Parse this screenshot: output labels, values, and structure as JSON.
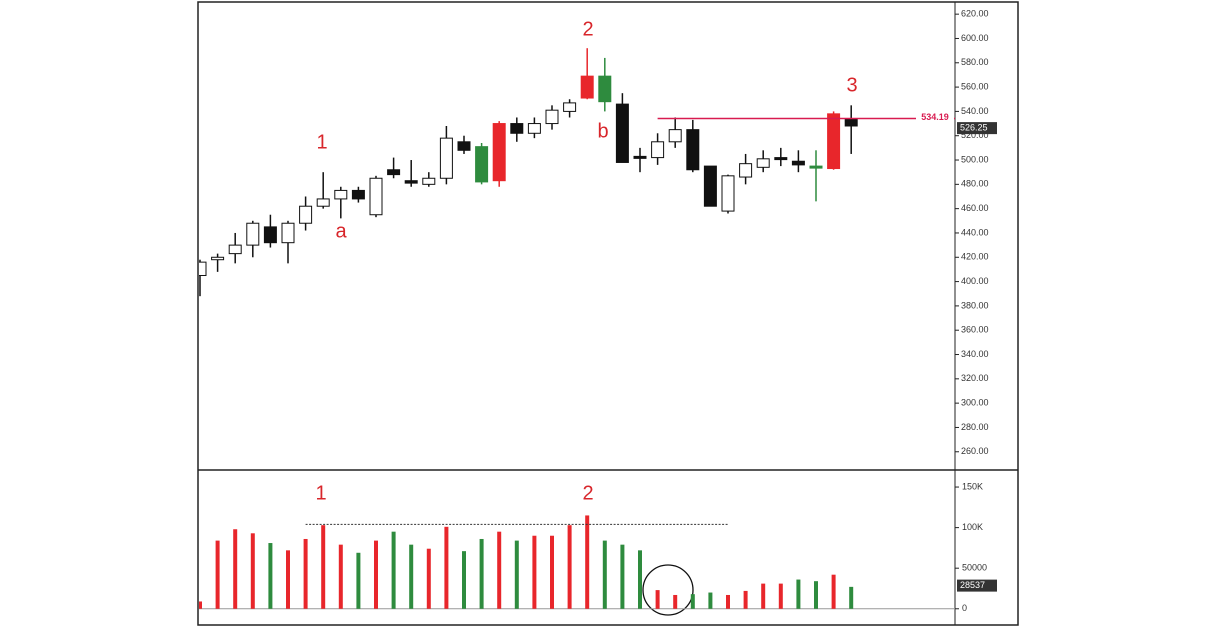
{
  "chart_data": [
    {
      "type": "candlestick",
      "open": [
        405,
        418,
        423,
        430,
        445,
        432,
        448,
        462,
        468,
        475,
        455,
        492,
        483,
        480,
        485,
        515,
        511,
        483,
        530,
        522,
        530,
        540,
        551,
        569,
        546,
        503,
        502,
        515,
        525,
        495,
        458,
        486,
        494,
        502,
        499,
        495,
        493,
        534
      ],
      "high": [
        418,
        423,
        440,
        450,
        455,
        450,
        470,
        490,
        478,
        478,
        487,
        502,
        500,
        490,
        528,
        520,
        514,
        532,
        535,
        535,
        545,
        550,
        592,
        584,
        555,
        510,
        522,
        535,
        533,
        495,
        488,
        505,
        508,
        510,
        508,
        508,
        540,
        545
      ],
      "low": [
        388,
        408,
        415,
        420,
        428,
        415,
        442,
        460,
        452,
        465,
        453,
        485,
        478,
        478,
        480,
        505,
        480,
        478,
        515,
        518,
        525,
        535,
        550,
        540,
        498,
        490,
        496,
        510,
        490,
        462,
        456,
        480,
        490,
        495,
        490,
        466,
        492,
        505
      ],
      "close": [
        416,
        420,
        430,
        448,
        432,
        448,
        462,
        468,
        475,
        468,
        485,
        488,
        481,
        485,
        518,
        508,
        482,
        530,
        522,
        530,
        541,
        547,
        569,
        548,
        498,
        502,
        515,
        525,
        492,
        462,
        487,
        497,
        501,
        501,
        496,
        494,
        538,
        528
      ],
      "colors": [
        "white",
        "white",
        "white",
        "white",
        "black",
        "white",
        "white",
        "white",
        "white",
        "black",
        "white",
        "black",
        "black",
        "white",
        "white",
        "black",
        "#2e8b3e",
        "#e8262b",
        "black",
        "white",
        "white",
        "white",
        "#e8262b",
        "#2e8b3e",
        "black",
        "black",
        "white",
        "white",
        "black",
        "black",
        "white",
        "white",
        "white",
        "black",
        "black",
        "#2e8b3e",
        "#e8262b",
        "black"
      ],
      "ylim": [
        245,
        630
      ],
      "yticks": [
        {
          "value": 260,
          "label": "260.00"
        },
        {
          "value": 280,
          "label": "280.00"
        },
        {
          "value": 300,
          "label": "300.00"
        },
        {
          "value": 320,
          "label": "320.00"
        },
        {
          "value": 340,
          "label": "340.00"
        },
        {
          "value": 360,
          "label": "360.00"
        },
        {
          "value": 380,
          "label": "380.00"
        },
        {
          "value": 400,
          "label": "400.00"
        },
        {
          "value": 420,
          "label": "420.00"
        },
        {
          "value": 440,
          "label": "440.00"
        },
        {
          "value": 460,
          "label": "460.00"
        },
        {
          "value": 480,
          "label": "480.00"
        },
        {
          "value": 500,
          "label": "500.00"
        },
        {
          "value": 520,
          "label": "520.00"
        },
        {
          "value": 540,
          "label": "540.00"
        },
        {
          "value": 560,
          "label": "560.00"
        },
        {
          "value": 580,
          "label": "580.00"
        },
        {
          "value": 600,
          "label": "600.00"
        },
        {
          "value": 620,
          "label": "620.00"
        }
      ],
      "reference_line": 534.19,
      "reference_color": "#d81b50",
      "last_price": 526.25,
      "annotations": [
        "1",
        "a",
        "2",
        "b",
        "3"
      ]
    },
    {
      "type": "bar",
      "values": [
        9000,
        84000,
        98000,
        93000,
        81000,
        72000,
        86000,
        103000,
        79000,
        69000,
        84000,
        95000,
        79000,
        74000,
        101000,
        71000,
        86000,
        95000,
        84000,
        90000,
        90000,
        103000,
        115000,
        84000,
        79000,
        72000,
        23000,
        17000,
        18000,
        20000,
        17000,
        22000,
        31000,
        31000,
        36000,
        34000,
        42000,
        27000
      ],
      "colors": [
        "#e8262b",
        "#e8262b",
        "#e8262b",
        "#e8262b",
        "#2e8b3e",
        "#e8262b",
        "#e8262b",
        "#e8262b",
        "#e8262b",
        "#2e8b3e",
        "#e8262b",
        "#2e8b3e",
        "#2e8b3e",
        "#e8262b",
        "#e8262b",
        "#2e8b3e",
        "#2e8b3e",
        "#e8262b",
        "#2e8b3e",
        "#e8262b",
        "#e8262b",
        "#e8262b",
        "#e8262b",
        "#2e8b3e",
        "#2e8b3e",
        "#2e8b3e",
        "#e8262b",
        "#e8262b",
        "#2e8b3e",
        "#2e8b3e",
        "#e8262b",
        "#e8262b",
        "#e8262b",
        "#e8262b",
        "#2e8b3e",
        "#2e8b3e",
        "#e8262b",
        "#2e8b3e"
      ],
      "ylim": [
        -20000,
        171000
      ],
      "yticks": [
        0,
        50000,
        {
          "value": 100000,
          "label": "100K"
        },
        {
          "value": 150000,
          "label": "150K"
        }
      ],
      "reference_line": 104000,
      "last_value": 28537,
      "annotations": [
        "1",
        "2"
      ]
    }
  ]
}
